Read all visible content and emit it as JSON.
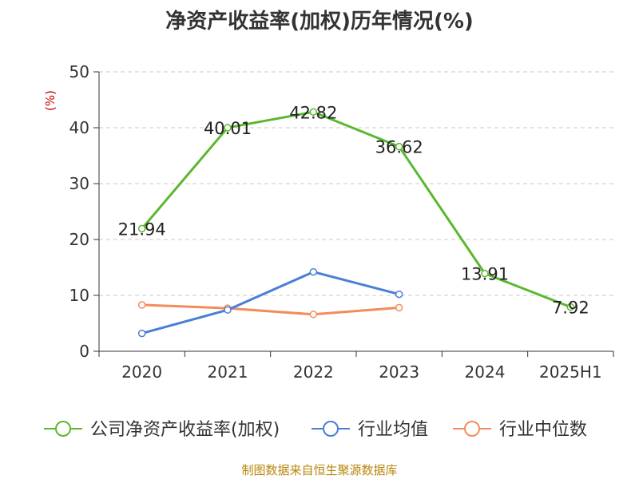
{
  "title": "净资产收益率(加权)历年情况(%)",
  "source": "制图数据来自恒生聚源数据库",
  "chart_data": {
    "type": "line",
    "title": "净资产收益率(加权)历年情况(%)",
    "ylabel": "(%)",
    "xlabel": "",
    "ylim": [
      0,
      50
    ],
    "yticks": [
      0,
      10,
      20,
      30,
      40,
      50
    ],
    "grid": true,
    "legend_position": "bottom",
    "categories": [
      "2020",
      "2021",
      "2022",
      "2023",
      "2024",
      "2025H1"
    ],
    "series": [
      {
        "name": "公司净资产收益率(加权)",
        "color": "#5ab82e",
        "values": [
          21.94,
          40.01,
          42.82,
          36.62,
          13.91,
          7.92
        ],
        "labels": [
          "21.94",
          "40.01",
          "42.82",
          "36.62",
          "13.91",
          "7.92"
        ]
      },
      {
        "name": "行业均值",
        "color": "#4a7fd6",
        "values": [
          3.2,
          7.4,
          14.2,
          10.2,
          null,
          null
        ]
      },
      {
        "name": "行业中位数",
        "color": "#f28c5a",
        "values": [
          8.3,
          7.7,
          6.6,
          7.8,
          null,
          null
        ]
      }
    ]
  }
}
